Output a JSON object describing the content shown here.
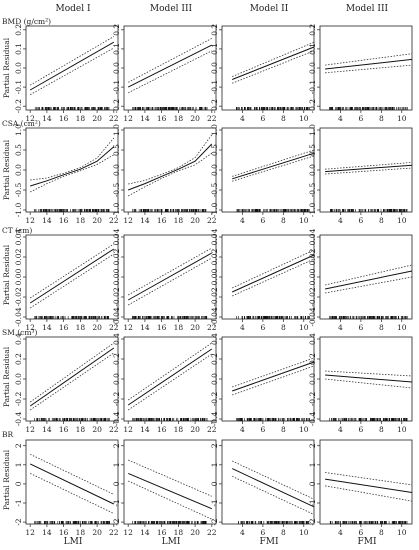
{
  "figure": {
    "column_titles": [
      "Model I",
      "Model III",
      "Model II",
      "Model III"
    ],
    "x_axis_labels": [
      "LMI",
      "LMI",
      "FMI",
      "FMI"
    ],
    "y_axis_label": "Partial Residual",
    "row_labels": [
      "BMD (g/cm²)",
      "CSA (cm²)",
      "CT (cm)",
      "SM (cm³)",
      "BR"
    ]
  },
  "chart_data": {
    "type": "line",
    "layout": "5 rows x 4 columns of partial residual plots",
    "x_axes": [
      {
        "variable": "LMI",
        "range": [
          11.5,
          22.5
        ],
        "ticks": [
          12,
          14,
          16,
          18,
          20,
          22
        ]
      },
      {
        "variable": "LMI",
        "range": [
          11.5,
          22.5
        ],
        "ticks": [
          12,
          14,
          16,
          18,
          20,
          22
        ]
      },
      {
        "variable": "FMI",
        "range": [
          2,
          11
        ],
        "ticks": [
          4,
          6,
          8,
          10
        ]
      },
      {
        "variable": "FMI",
        "range": [
          2,
          11
        ],
        "ticks": [
          4,
          6,
          8,
          10
        ]
      }
    ],
    "rows": [
      {
        "label": "BMD (g/cm²)",
        "ylim": [
          -0.22,
          0.22
        ],
        "yticks": [
          -0.2,
          -0.1,
          0.0,
          0.1,
          0.2
        ],
        "panels": [
          {
            "x": [
              12,
              22
            ],
            "fit": [
              -0.115,
              0.135
            ],
            "lower": [
              -0.14,
              0.105
            ],
            "upper": [
              -0.09,
              0.165
            ]
          },
          {
            "x": [
              12,
              22
            ],
            "fit": [
              -0.1,
              0.12
            ],
            "lower": [
              -0.13,
              0.09
            ],
            "upper": [
              -0.075,
              0.155
            ]
          },
          {
            "x": [
              3,
              11
            ],
            "fit": [
              -0.06,
              0.11
            ],
            "lower": [
              -0.08,
              0.09
            ],
            "upper": [
              -0.045,
              0.135
            ]
          },
          {
            "x": [
              2.5,
              11
            ],
            "fit": [
              -0.005,
              0.045
            ],
            "lower": [
              -0.025,
              0.015
            ],
            "upper": [
              0.015,
              0.075
            ]
          }
        ]
      },
      {
        "label": "CSA (cm²)",
        "ylim": [
          -1.05,
          1.05
        ],
        "yticks": [
          -1.0,
          -0.5,
          0.0,
          0.5,
          1.0
        ],
        "panels": [
          {
            "x": [
              12,
              14,
              16,
              18,
              20,
              22
            ],
            "fit": [
              -0.4,
              -0.27,
              -0.12,
              0.02,
              0.22,
              0.58
            ],
            "lower": [
              -0.55,
              -0.34,
              -0.16,
              -0.02,
              0.14,
              0.38
            ],
            "upper": [
              -0.25,
              -0.2,
              -0.08,
              0.06,
              0.3,
              0.8
            ]
          },
          {
            "x": [
              12,
              14,
              16,
              18,
              20,
              22
            ],
            "fit": [
              -0.5,
              -0.34,
              -0.16,
              0.02,
              0.22,
              0.65
            ],
            "lower": [
              -0.65,
              -0.42,
              -0.21,
              -0.02,
              0.13,
              0.42
            ],
            "upper": [
              -0.35,
              -0.26,
              -0.11,
              0.06,
              0.31,
              0.88
            ]
          },
          {
            "x": [
              3,
              11
            ],
            "fit": [
              -0.22,
              0.42
            ],
            "lower": [
              -0.28,
              0.35
            ],
            "upper": [
              -0.16,
              0.5
            ]
          },
          {
            "x": [
              2.5,
              11
            ],
            "fit": [
              -0.04,
              0.12
            ],
            "lower": [
              -0.1,
              0.05
            ],
            "upper": [
              0.02,
              0.19
            ]
          }
        ]
      },
      {
        "label": "CT (cm)",
        "ylim": [
          -0.042,
          0.042
        ],
        "yticks": [
          -0.04,
          -0.02,
          0.0,
          0.02,
          0.04
        ],
        "panels": [
          {
            "x": [
              12,
              22
            ],
            "fit": [
              -0.026,
              0.028
            ],
            "lower": [
              -0.031,
              0.023
            ],
            "upper": [
              -0.021,
              0.033
            ]
          },
          {
            "x": [
              12,
              22
            ],
            "fit": [
              -0.023,
              0.024
            ],
            "lower": [
              -0.028,
              0.019
            ],
            "upper": [
              -0.018,
              0.029
            ]
          },
          {
            "x": [
              3,
              11
            ],
            "fit": [
              -0.015,
              0.022
            ],
            "lower": [
              -0.019,
              0.018
            ],
            "upper": [
              -0.011,
              0.027
            ]
          },
          {
            "x": [
              2.5,
              11
            ],
            "fit": [
              -0.012,
              0.006
            ],
            "lower": [
              -0.016,
              0.0
            ],
            "upper": [
              -0.008,
              0.012
            ]
          }
        ]
      },
      {
        "label": "SM (cm³)",
        "ylim": [
          -0.42,
          0.42
        ],
        "yticks": [
          -0.4,
          -0.2,
          0.0,
          0.2,
          0.4
        ],
        "panels": [
          {
            "x": [
              12,
              22
            ],
            "fit": [
              -0.27,
              0.31
            ],
            "lower": [
              -0.31,
              0.26
            ],
            "upper": [
              -0.23,
              0.36
            ]
          },
          {
            "x": [
              12,
              22
            ],
            "fit": [
              -0.26,
              0.3
            ],
            "lower": [
              -0.31,
              0.25
            ],
            "upper": [
              -0.21,
              0.36
            ]
          },
          {
            "x": [
              3,
              11
            ],
            "fit": [
              -0.12,
              0.17
            ],
            "lower": [
              -0.16,
              0.13
            ],
            "upper": [
              -0.08,
              0.21
            ]
          },
          {
            "x": [
              2.5,
              11
            ],
            "fit": [
              0.04,
              -0.03
            ],
            "lower": [
              0.0,
              -0.09
            ],
            "upper": [
              0.08,
              0.03
            ]
          }
        ]
      },
      {
        "label": "BR",
        "ylim": [
          -2.1,
          2.3
        ],
        "yticks": [
          -2,
          -1,
          0,
          1,
          2
        ],
        "panels": [
          {
            "x": [
              12,
              22
            ],
            "fit": [
              1.05,
              -1.05
            ],
            "lower": [
              0.55,
              -1.55
            ],
            "upper": [
              1.55,
              -0.55
            ]
          },
          {
            "x": [
              12,
              22
            ],
            "fit": [
              0.55,
              -1.3
            ],
            "lower": [
              0.15,
              -1.85
            ],
            "upper": [
              1.25,
              -0.65
            ]
          },
          {
            "x": [
              3,
              11
            ],
            "fit": [
              0.8,
              -1.2
            ],
            "lower": [
              0.4,
              -1.6
            ],
            "upper": [
              1.2,
              -0.8
            ]
          },
          {
            "x": [
              2.5,
              11
            ],
            "fit": [
              0.25,
              -0.45
            ],
            "lower": [
              -0.1,
              -0.9
            ],
            "upper": [
              0.6,
              -0.05
            ]
          }
        ]
      }
    ]
  }
}
